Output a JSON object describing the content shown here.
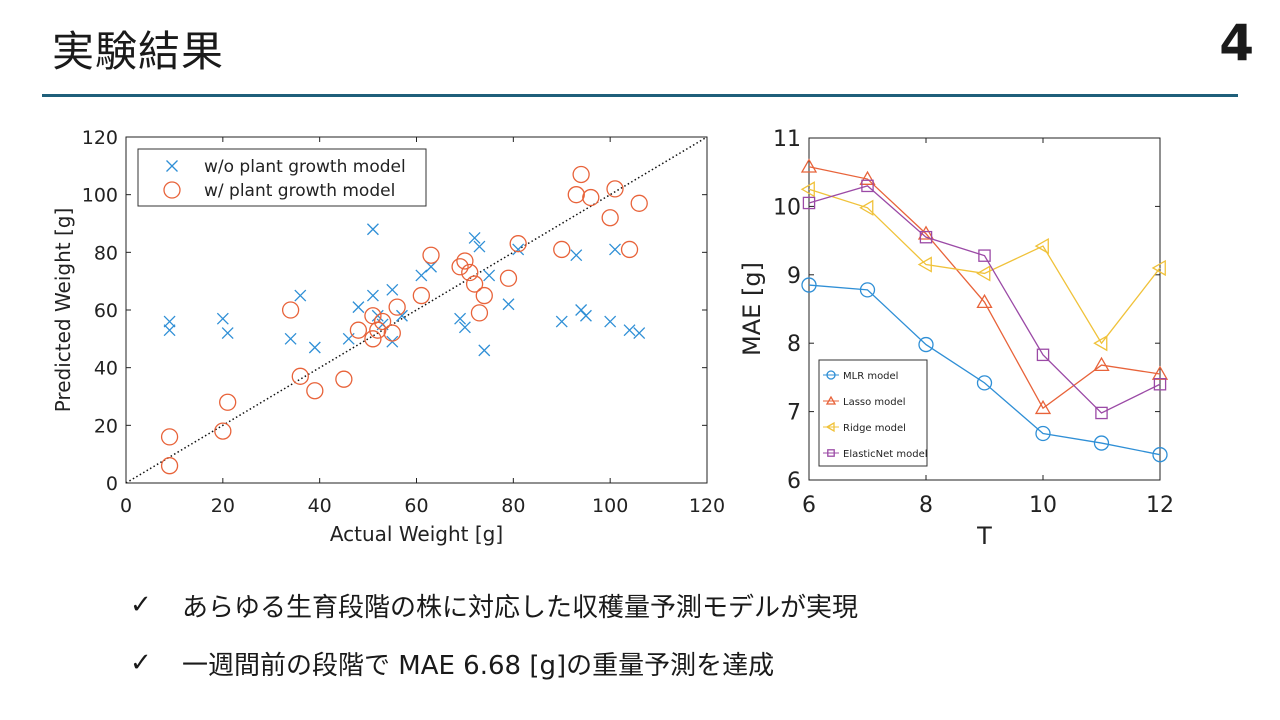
{
  "slide": {
    "title": "実験結果",
    "number": "4"
  },
  "bullets": [
    {
      "check": "✓",
      "text": "あらゆる生育段階の株に対応した収穫量予測モデルが実現"
    },
    {
      "check": "✓",
      "text": "一週間前の段階で MAE 6.68 [g]の重量予測を達成"
    }
  ],
  "chart_data": [
    {
      "type": "scatter",
      "xlabel": "Actual Weight [g]",
      "ylabel": "Predicted Weight [g]",
      "xlim": [
        0,
        120
      ],
      "ylim": [
        0,
        120
      ],
      "xticks": [
        0,
        20,
        40,
        60,
        80,
        100,
        120
      ],
      "yticks": [
        0,
        20,
        40,
        60,
        80,
        100,
        120
      ],
      "grid": false,
      "legend": "top-left",
      "reference_line": {
        "style": "dotted",
        "from": [
          0,
          0
        ],
        "to": [
          120,
          120
        ]
      },
      "series": [
        {
          "name": "w/o plant growth model",
          "marker": "x",
          "color": "#2f8fd6",
          "points": [
            [
              9,
              56
            ],
            [
              9,
              53
            ],
            [
              20,
              57
            ],
            [
              21,
              52
            ],
            [
              34,
              50
            ],
            [
              36,
              65
            ],
            [
              39,
              47
            ],
            [
              46,
              50
            ],
            [
              48,
              61
            ],
            [
              51,
              88
            ],
            [
              51,
              65
            ],
            [
              52,
              58
            ],
            [
              53,
              55
            ],
            [
              55,
              49
            ],
            [
              55,
              67
            ],
            [
              57,
              58
            ],
            [
              61,
              72
            ],
            [
              63,
              75
            ],
            [
              69,
              57
            ],
            [
              70,
              54
            ],
            [
              72,
              85
            ],
            [
              73,
              82
            ],
            [
              74,
              46
            ],
            [
              75,
              72
            ],
            [
              79,
              62
            ],
            [
              81,
              81
            ],
            [
              90,
              56
            ],
            [
              93,
              79
            ],
            [
              94,
              60
            ],
            [
              95,
              58
            ],
            [
              100,
              56
            ],
            [
              101,
              81
            ],
            [
              104,
              53
            ],
            [
              106,
              52
            ]
          ]
        },
        {
          "name": "w/ plant growth model",
          "marker": "o",
          "color": "#e8633a",
          "points": [
            [
              9,
              16
            ],
            [
              9,
              6
            ],
            [
              20,
              18
            ],
            [
              21,
              28
            ],
            [
              34,
              60
            ],
            [
              36,
              37
            ],
            [
              39,
              32
            ],
            [
              45,
              36
            ],
            [
              48,
              53
            ],
            [
              51,
              50
            ],
            [
              51,
              58
            ],
            [
              52,
              53
            ],
            [
              53,
              56
            ],
            [
              55,
              52
            ],
            [
              56,
              61
            ],
            [
              61,
              65
            ],
            [
              63,
              79
            ],
            [
              69,
              75
            ],
            [
              70,
              77
            ],
            [
              71,
              73
            ],
            [
              72,
              69
            ],
            [
              73,
              59
            ],
            [
              74,
              65
            ],
            [
              79,
              71
            ],
            [
              81,
              83
            ],
            [
              90,
              81
            ],
            [
              93,
              100
            ],
            [
              94,
              107
            ],
            [
              96,
              99
            ],
            [
              100,
              92
            ],
            [
              101,
              102
            ],
            [
              104,
              81
            ],
            [
              106,
              97
            ]
          ]
        }
      ]
    },
    {
      "type": "line",
      "xlabel": "T",
      "ylabel": "MAE [g]",
      "xlim": [
        6,
        12
      ],
      "ylim": [
        6,
        11
      ],
      "xticks": [
        6,
        8,
        10,
        12
      ],
      "yticks": [
        6,
        7,
        8,
        9,
        10,
        11
      ],
      "grid": false,
      "legend": "bottom-left",
      "x": [
        6,
        7,
        8,
        9,
        10,
        11,
        12
      ],
      "series": [
        {
          "name": "MLR model",
          "marker": "o",
          "color": "#2f8fd6",
          "values": [
            8.85,
            8.78,
            7.98,
            7.42,
            6.68,
            6.54,
            6.37
          ]
        },
        {
          "name": "Lasso model",
          "marker": "^",
          "color": "#e8633a",
          "values": [
            10.58,
            10.4,
            9.6,
            8.6,
            7.05,
            7.68,
            7.55
          ]
        },
        {
          "name": "Ridge model",
          "marker": "<",
          "color": "#f0c23a",
          "values": [
            10.25,
            9.98,
            9.15,
            9.02,
            9.42,
            8.0,
            9.1
          ]
        },
        {
          "name": "ElasticNet model",
          "marker": "s",
          "color": "#9b4aa6",
          "values": [
            10.05,
            10.3,
            9.55,
            9.28,
            7.83,
            6.98,
            7.4
          ]
        }
      ]
    }
  ]
}
